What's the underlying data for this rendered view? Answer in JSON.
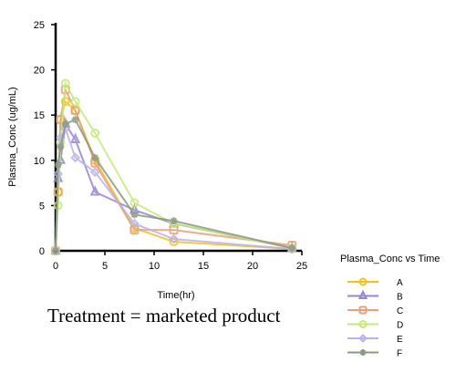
{
  "chart_data": {
    "type": "line",
    "xlabel": "Time(hr)",
    "ylabel": "Plasma_Conc (ug/mL)",
    "xlim": [
      0,
      25
    ],
    "ylim": [
      0,
      25
    ],
    "xticks": [
      0,
      5,
      10,
      15,
      20,
      25
    ],
    "yticks": [
      0,
      5,
      10,
      15,
      20,
      25
    ],
    "grid": false,
    "legend_title": "Plasma_Conc vs Time",
    "legend_position": "right",
    "series": [
      {
        "name": "A",
        "color": "#f0c419",
        "marker": "circle",
        "x": [
          0,
          0.25,
          0.5,
          1,
          2,
          4,
          8,
          12,
          24
        ],
        "y": [
          0,
          6.5,
          14.5,
          16.5,
          15.5,
          10.0,
          2.5,
          1.0,
          0.2
        ]
      },
      {
        "name": "B",
        "color": "#9a86cf",
        "marker": "triangle",
        "x": [
          0,
          0.25,
          0.5,
          1,
          2,
          4,
          8,
          12,
          24
        ],
        "y": [
          0,
          8.0,
          10.0,
          14.0,
          12.3,
          6.5,
          4.5,
          3.0,
          0.3
        ]
      },
      {
        "name": "C",
        "color": "#e8a07a",
        "marker": "square",
        "x": [
          0,
          0.25,
          0.5,
          1,
          2,
          4,
          8,
          12,
          24
        ],
        "y": [
          0,
          6.5,
          14.5,
          17.8,
          15.5,
          9.7,
          2.3,
          2.3,
          0.6
        ]
      },
      {
        "name": "D",
        "color": "#c5ea78",
        "marker": "circle",
        "x": [
          0,
          0.25,
          0.5,
          1,
          2,
          4,
          8,
          12,
          24
        ],
        "y": [
          0,
          5.0,
          12.0,
          18.5,
          16.5,
          13.0,
          5.3,
          3.0,
          0.3
        ]
      },
      {
        "name": "E",
        "color": "#b9b2ec",
        "marker": "diamond",
        "x": [
          0,
          0.25,
          0.5,
          1,
          2,
          4,
          8,
          12,
          24
        ],
        "y": [
          0,
          8.5,
          12.5,
          13.5,
          10.3,
          8.7,
          3.0,
          1.3,
          0.2
        ]
      },
      {
        "name": "F",
        "color": "#8b9b80",
        "marker": "star",
        "x": [
          0,
          0.25,
          0.5,
          1,
          2,
          4,
          8,
          12,
          24
        ],
        "y": [
          0,
          9.5,
          11.5,
          14.0,
          14.5,
          10.3,
          4.0,
          3.3,
          0.3
        ]
      }
    ]
  },
  "caption": "Treatment = marketed product"
}
